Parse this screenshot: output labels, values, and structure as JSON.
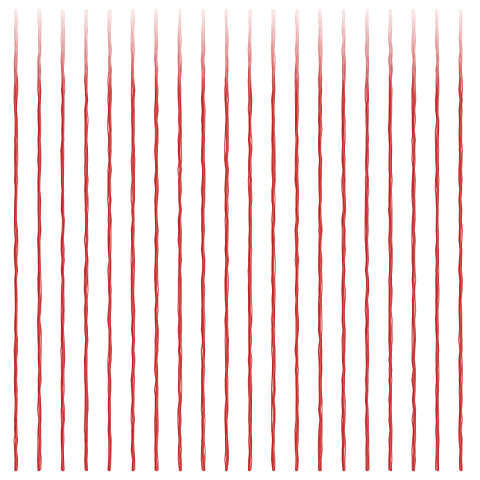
{
  "pattern": {
    "name": "red-vertical-brush-stripes",
    "stripe_count": 20,
    "colors": {
      "background": "#ffffff",
      "stroke_main": "#c62828",
      "stroke_dark": "#b71c1c",
      "stroke_light": "#e57373"
    }
  }
}
